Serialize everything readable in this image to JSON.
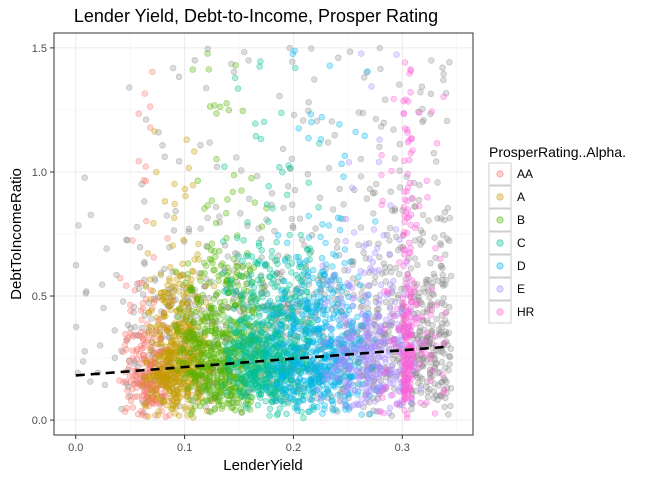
{
  "colors": {
    "panel_border": "#333333",
    "grid": "#ebebeb",
    "trend": "#000000",
    "ungraded_points": "#808080",
    "ratings": {
      "AA": "#F8766D",
      "A": "#C49A00",
      "B": "#53B400",
      "C": "#00C094",
      "D": "#00B6EB",
      "E": "#A58AFF",
      "HR": "#FB61D7"
    }
  },
  "chart_data": {
    "type": "scatter",
    "title": "Lender Yield, Debt-to-Income, Prosper Rating",
    "xlabel": "LenderYield",
    "ylabel": "DebtToIncomeRatio",
    "xlim": [
      -0.02,
      0.365
    ],
    "ylim": [
      -0.06,
      1.56
    ],
    "x_ticks": [
      0.0,
      0.1,
      0.2,
      0.3
    ],
    "x_tick_labels": [
      "0.0",
      "0.1",
      "0.2",
      "0.3"
    ],
    "y_ticks": [
      0.0,
      0.5,
      1.0,
      1.5
    ],
    "y_tick_labels": [
      "0.0",
      "0.5",
      "1.0",
      "1.5"
    ],
    "grid": true,
    "legend_position": "right",
    "legend": {
      "title": "ProsperRating..Alpha.",
      "entries": [
        "AA",
        "A",
        "B",
        "C",
        "D",
        "E",
        "HR"
      ]
    },
    "trend_line": {
      "style": "dashed",
      "method": "linear fit",
      "x": [
        0.0,
        0.34
      ],
      "y": [
        0.18,
        0.295
      ]
    },
    "series": [
      {
        "name": "AA",
        "x_range": [
          0.04,
          0.09
        ],
        "y_typical": [
          0.0,
          0.4
        ],
        "point_count_approx": 6000
      },
      {
        "name": "A",
        "x_range": [
          0.06,
          0.13
        ],
        "y_typical": [
          0.0,
          0.5
        ],
        "point_count_approx": 14000
      },
      {
        "name": "B",
        "x_range": [
          0.09,
          0.18
        ],
        "y_typical": [
          0.0,
          0.55
        ],
        "point_count_approx": 15000
      },
      {
        "name": "C",
        "x_range": [
          0.13,
          0.23
        ],
        "y_typical": [
          0.0,
          0.55
        ],
        "point_count_approx": 18000
      },
      {
        "name": "D",
        "x_range": [
          0.17,
          0.28
        ],
        "y_typical": [
          0.0,
          0.55
        ],
        "point_count_approx": 14000
      },
      {
        "name": "E",
        "x_range": [
          0.22,
          0.32
        ],
        "y_typical": [
          0.0,
          0.55
        ],
        "point_count_approx": 9000
      },
      {
        "name": "HR",
        "x_range": [
          0.28,
          0.34
        ],
        "y_typical": [
          0.0,
          1.45
        ],
        "point_count_approx": 7000
      },
      {
        "name": "",
        "x_range": [
          0.0,
          0.35
        ],
        "y_typical": [
          0.0,
          1.5
        ],
        "point_count_approx": 29000
      }
    ]
  }
}
